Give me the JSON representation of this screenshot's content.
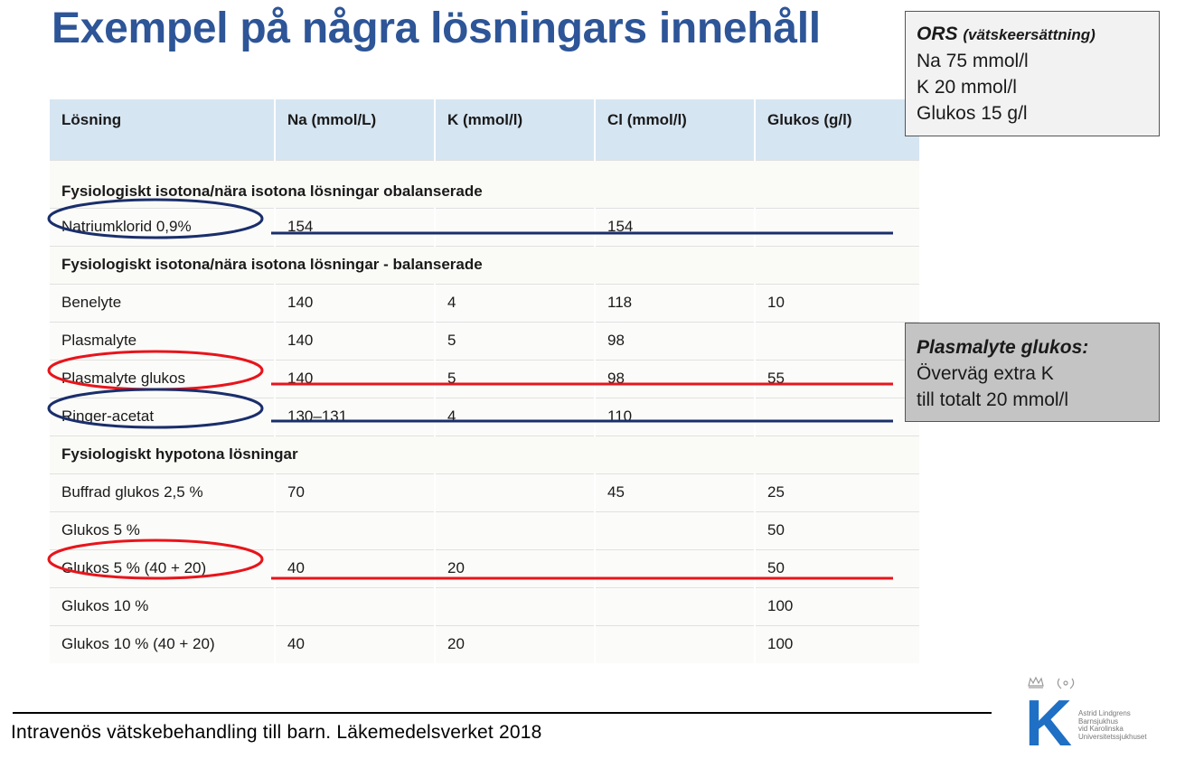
{
  "title": "Exempel på några lösningars innehåll",
  "table": {
    "headers": [
      "Lösning",
      "Na (mmol/L)",
      "K (mmol/l)",
      "Cl (mmol/l)",
      "Glukos (g/l)"
    ],
    "sections": [
      {
        "heading": "Fysiologiskt isotona/nära isotona lösningar  obalanserade",
        "rows": [
          [
            "Natriumklorid 0,9%",
            "154",
            "",
            "154",
            ""
          ]
        ]
      },
      {
        "heading": "Fysiologiskt isotona/nära isotona lösningar - balanserade",
        "rows": [
          [
            "Benelyte",
            "140",
            "4",
            "118",
            "10"
          ],
          [
            "Plasmalyte",
            "140",
            "5",
            "98",
            ""
          ],
          [
            "Plasmalyte glukos",
            "140",
            "5",
            "98",
            "55"
          ],
          [
            "Ringer-acetat",
            "130–131",
            "4",
            "110",
            ""
          ]
        ]
      },
      {
        "heading": "Fysiologiskt hypotona lösningar",
        "rows": [
          [
            "Buffrad glukos 2,5 %",
            "70",
            "",
            "45",
            "25"
          ],
          [
            "Glukos 5 %",
            "",
            "",
            "",
            "50"
          ],
          [
            "Glukos 5 % (40 + 20)",
            "40",
            "20",
            "",
            "50"
          ],
          [
            "Glukos 10 %",
            "",
            "",
            "",
            "100"
          ],
          [
            "Glukos 10 % (40 + 20)",
            "40",
            "20",
            "",
            "100"
          ]
        ]
      }
    ]
  },
  "ors_box": {
    "heading": "ORS",
    "heading_sub": "(vätskeersättning)",
    "lines": [
      "Na 75 mmol/l",
      "K 20 mmol/l",
      "Glukos  15 g/l"
    ]
  },
  "plasmalyte_box": {
    "heading": "Plasmalyte glukos:",
    "lines": [
      "Överväg extra K",
      "till totalt 20 mmol/l"
    ]
  },
  "footer": "Intravenös  vätskebehandling  till barn.  Läkemedelsverket  2018",
  "logo": {
    "letter": "K",
    "text_lines": [
      "Astrid Lindgrens",
      "Barnsjukhus",
      "vid Karolinska",
      "Universitetssjukhuset"
    ]
  },
  "colors": {
    "title": "#2d5597",
    "header_bg": "#d6e5f2",
    "navy_mark": "#1a2e6b",
    "red_mark": "#e8141b",
    "logo_blue": "#1f6fc4"
  }
}
